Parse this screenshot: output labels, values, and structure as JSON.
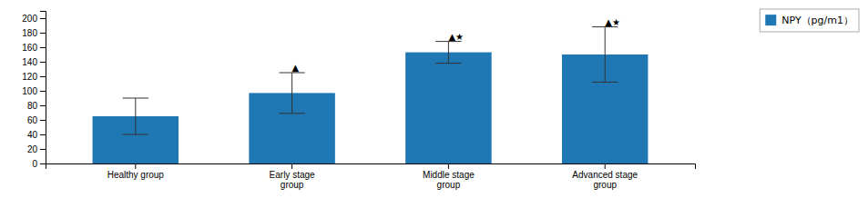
{
  "chart_data": {
    "type": "bar",
    "categories": [
      "Healthy group",
      "Early stage\ngroup",
      "Middle stage\ngroup",
      "Advanced stage\ngroup"
    ],
    "series": [
      {
        "name": "NPY（pg/m1）",
        "values": [
          65,
          97,
          153,
          150
        ],
        "errors": [
          25,
          28,
          15,
          38
        ]
      }
    ],
    "annotations": [
      {
        "text": "▲",
        "x": "Early stage\ngroup",
        "y": 127
      },
      {
        "text": "▲★",
        "x": "Middle stage\ngroup",
        "y": 170
      },
      {
        "text": "▲★",
        "x": "Advanced stage\ngroup",
        "y": 190
      }
    ],
    "ylim": [
      0,
      210
    ],
    "yticks": [
      0,
      20,
      40,
      60,
      80,
      100,
      120,
      140,
      160,
      180,
      200
    ],
    "grid": false,
    "legend": "upper right"
  }
}
